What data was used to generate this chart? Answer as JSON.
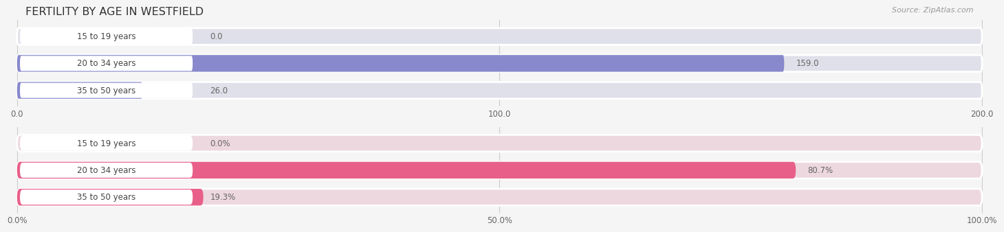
{
  "title": "FERTILITY BY AGE IN WESTFIELD",
  "source": "Source: ZipAtlas.com",
  "background_color": "#f5f5f5",
  "top_section": {
    "categories": [
      "15 to 19 years",
      "20 to 34 years",
      "35 to 50 years"
    ],
    "values": [
      0.0,
      159.0,
      26.0
    ],
    "value_labels": [
      "0.0",
      "159.0",
      "26.0"
    ],
    "max_val": 200.0,
    "tick_vals": [
      0.0,
      100.0,
      200.0
    ],
    "tick_labels": [
      "0.0",
      "100.0",
      "200.0"
    ],
    "bar_color": "#8888cc",
    "bar_bg": "#e0e0ea",
    "label_pill_color": "#ffffff",
    "label_text_color": "#444444",
    "value_inside_color": "#ffffff",
    "value_outside_color": "#666666"
  },
  "bottom_section": {
    "categories": [
      "15 to 19 years",
      "20 to 34 years",
      "35 to 50 years"
    ],
    "values": [
      0.0,
      80.7,
      19.3
    ],
    "value_labels": [
      "0.0%",
      "80.7%",
      "19.3%"
    ],
    "max_val": 100.0,
    "tick_vals": [
      0.0,
      50.0,
      100.0
    ],
    "tick_labels": [
      "0.0%",
      "50.0%",
      "100.0%"
    ],
    "bar_color": "#e8608a",
    "bar_bg": "#edd8e0",
    "label_pill_color": "#ffffff",
    "label_text_color": "#444444",
    "value_inside_color": "#ffffff",
    "value_outside_color": "#666666"
  }
}
